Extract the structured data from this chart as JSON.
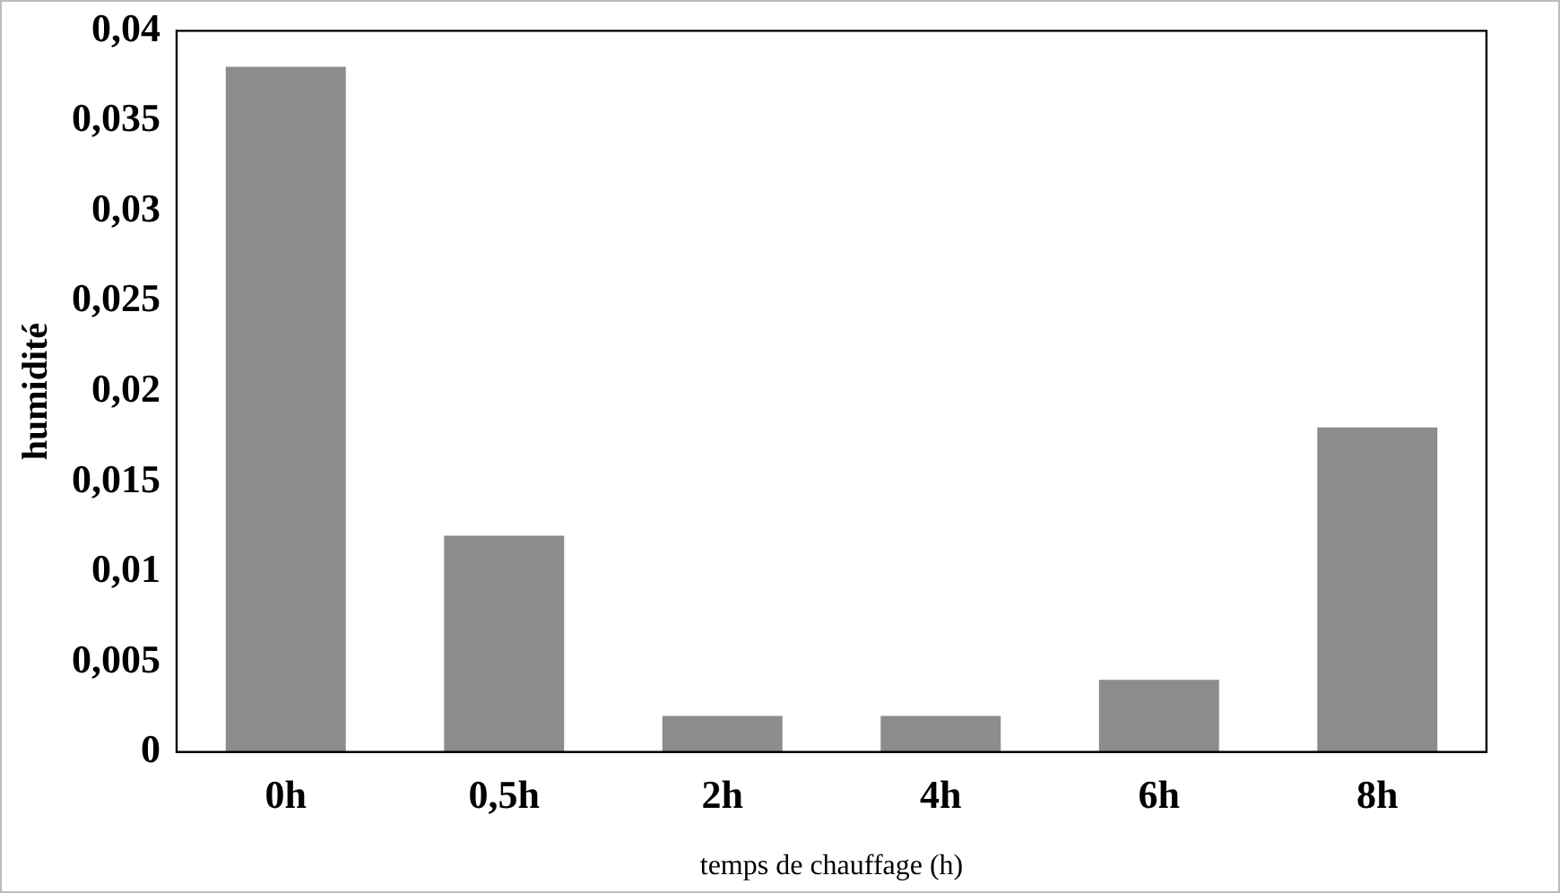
{
  "chart_data": {
    "type": "bar",
    "xlabel": "temps de chauffage (h)",
    "ylabel": "humidité",
    "categories": [
      "0h",
      "0,5h",
      "2h",
      "4h",
      "6h",
      "8h"
    ],
    "values": [
      0.038,
      0.012,
      0.002,
      0.002,
      0.004,
      0.018
    ],
    "color": "#8c8c8c",
    "ylim": [
      0,
      0.04
    ],
    "yticks": [
      {
        "value": 0,
        "label": "0"
      },
      {
        "value": 0.005,
        "label": "0,005"
      },
      {
        "value": 0.01,
        "label": "0,01"
      },
      {
        "value": 0.015,
        "label": "0,015"
      },
      {
        "value": 0.02,
        "label": "0,02"
      },
      {
        "value": 0.025,
        "label": "0,025"
      },
      {
        "value": 0.03,
        "label": "0,03"
      },
      {
        "value": 0.035,
        "label": "0,035"
      },
      {
        "value": 0.04,
        "label": "0,04"
      }
    ],
    "grid": false,
    "legend": false
  }
}
